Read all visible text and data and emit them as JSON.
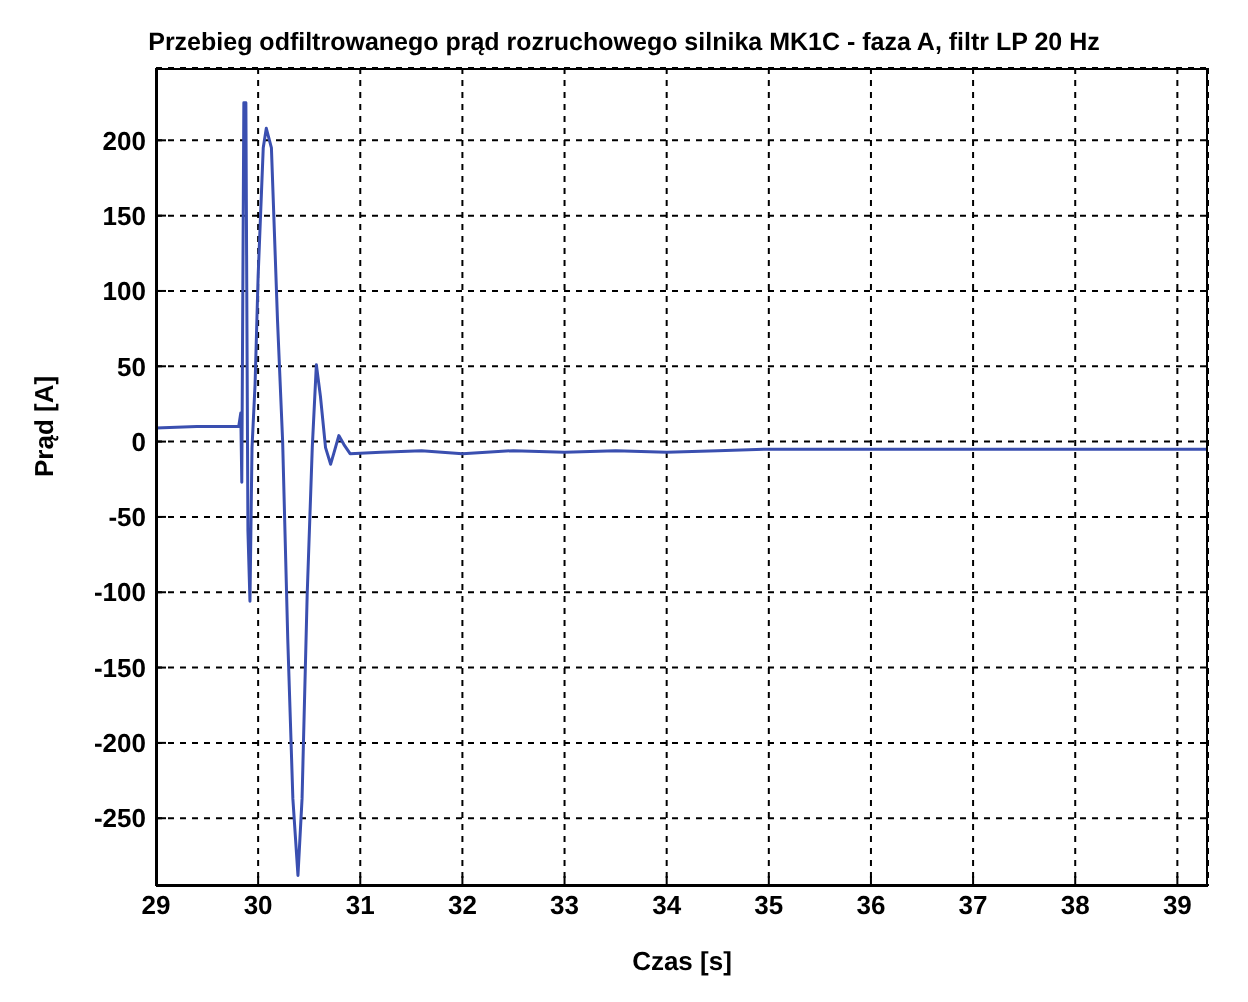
{
  "chart_data": {
    "type": "line",
    "title": "Przebieg odfiltrowanego prąd rozruchowego silnika MK1C - faza A, filtr LP 20 Hz",
    "xlabel": "Czas [s]",
    "ylabel": "Prąd [A]",
    "x": [
      29,
      29.4,
      29.81,
      29.83,
      29.84,
      29.86,
      29.88,
      29.9,
      29.92,
      29.94,
      29.97,
      30,
      30.05,
      30.08,
      30.13,
      30.19,
      30.24,
      30.29,
      30.34,
      30.39,
      30.43,
      30.48,
      30.53,
      30.57,
      30.61,
      30.66,
      30.71,
      30.74,
      30.79,
      30.84,
      30.9,
      31.2,
      31.6,
      32,
      32.5,
      33,
      33.5,
      34,
      34.5,
      35,
      35.5,
      36,
      36.5,
      37,
      37.5,
      38,
      38.5,
      39,
      39.3
    ],
    "series": [
      {
        "color": "#3a4fb0",
        "values": [
          9,
          10,
          10,
          19,
          -27,
          225,
          225,
          -59,
          -106,
          -4,
          38,
          110,
          195,
          208,
          195,
          80,
          0,
          -131,
          -237,
          -288,
          -237,
          -102,
          -4,
          51,
          30,
          -4,
          -15,
          -8,
          4,
          -2,
          -8,
          -7,
          -6,
          -8,
          -6,
          -7,
          -6,
          -7,
          -6,
          -5,
          -5,
          -5,
          -5,
          -5,
          -5,
          -5,
          -5,
          -5,
          -5
        ]
      }
    ],
    "xlim": [
      29,
      39.3
    ],
    "ylim": [
      -295,
      248
    ],
    "xticks": [
      29,
      30,
      31,
      32,
      33,
      34,
      35,
      36,
      37,
      38,
      39
    ],
    "yticks": [
      -250,
      -200,
      -150,
      -100,
      -50,
      0,
      50,
      100,
      150,
      200
    ],
    "grid": true,
    "line_style": "solid",
    "marker": "none"
  }
}
